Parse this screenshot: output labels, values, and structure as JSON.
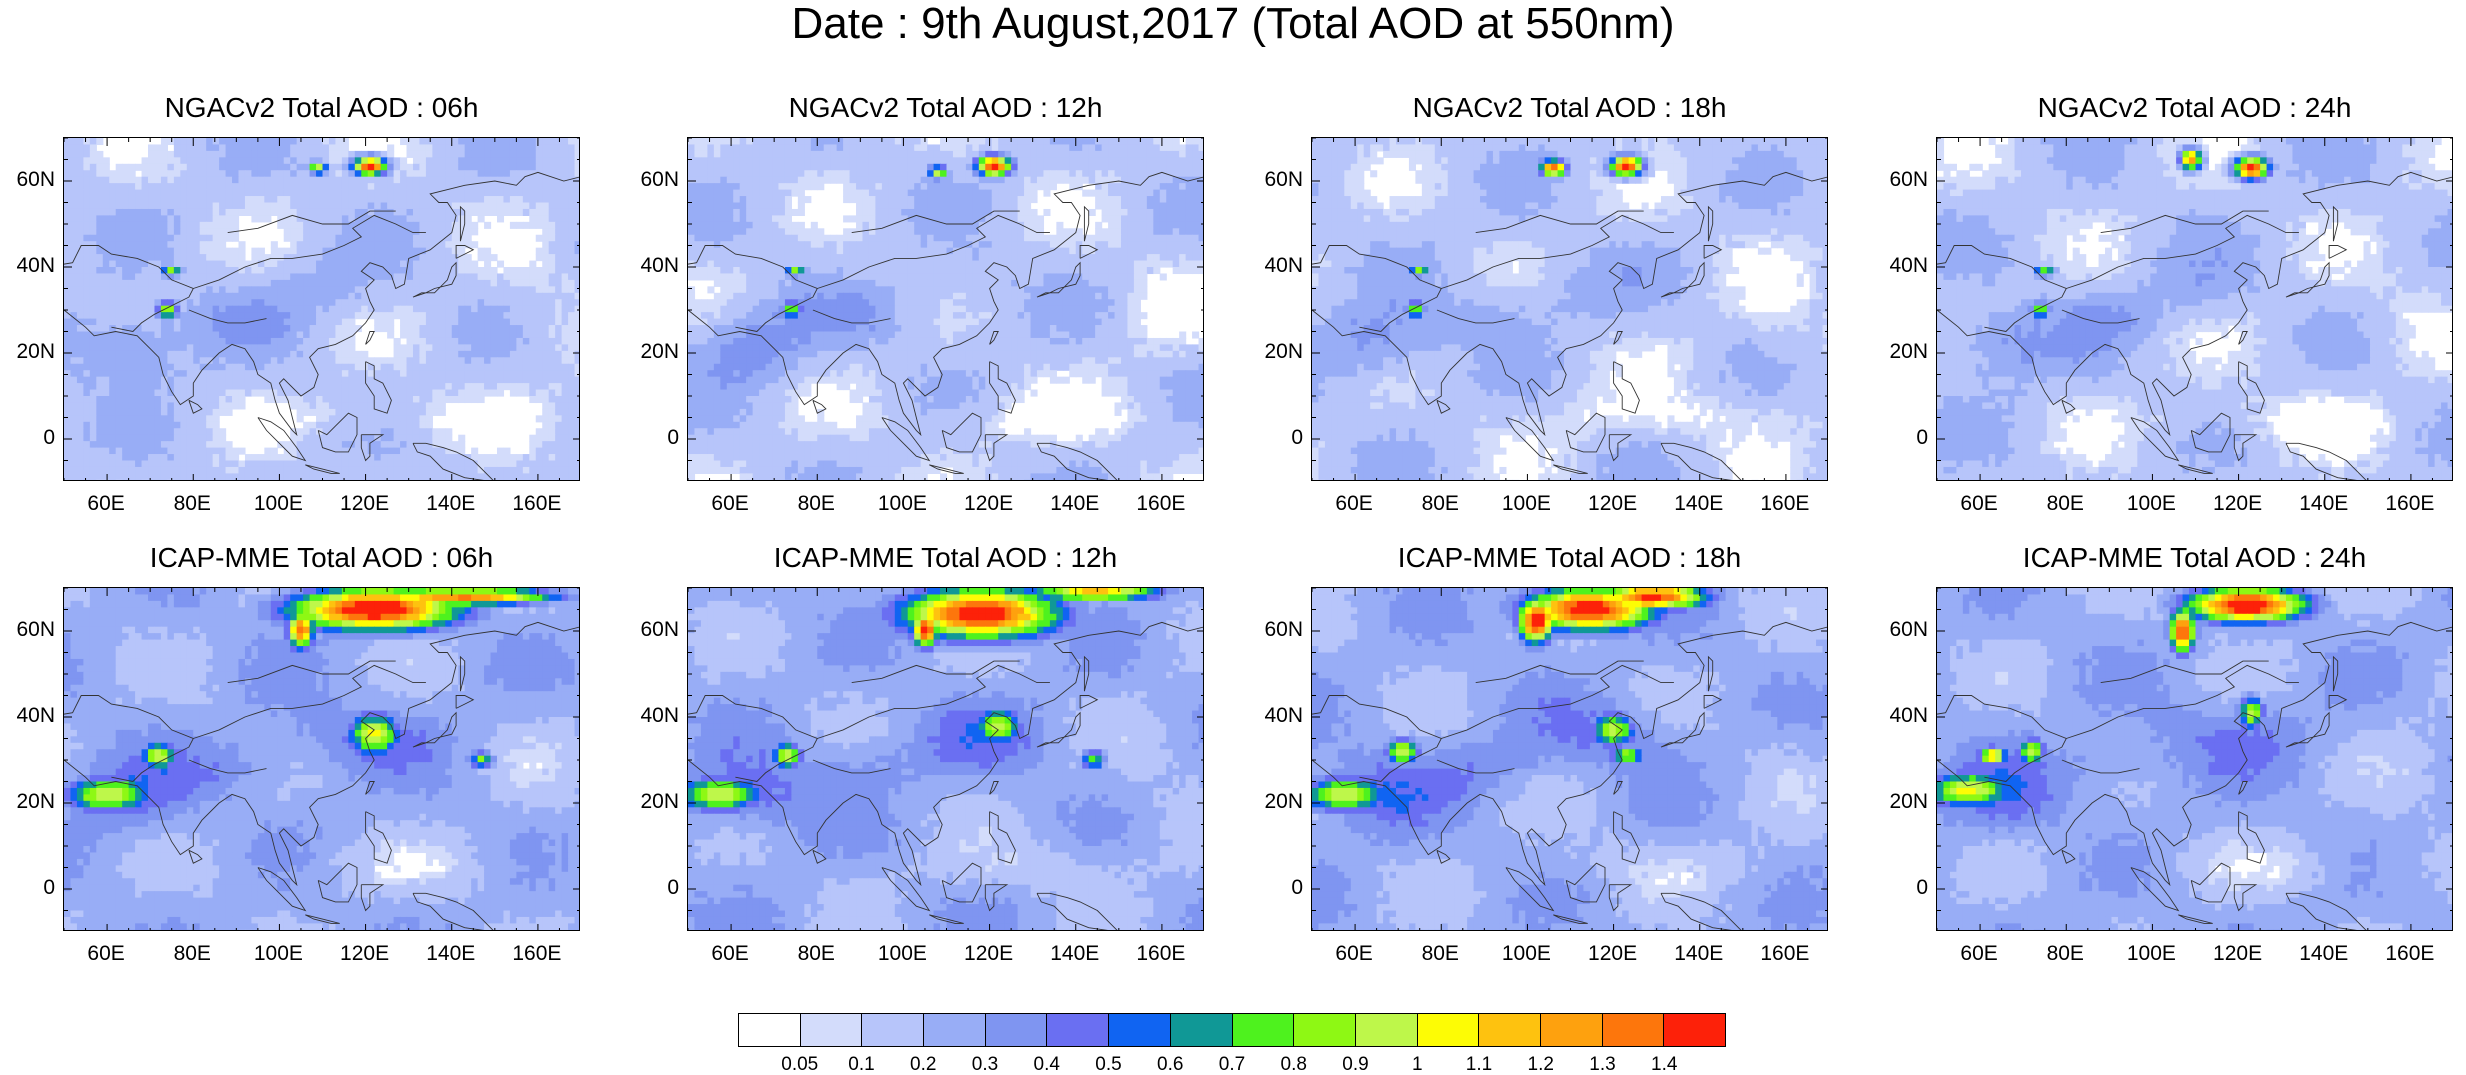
{
  "title": "Date : 9th August,2017 (Total AOD at 550nm)",
  "panels": [
    {
      "id": "ngac-06",
      "title": "NGACv2 Total AOD : 06h",
      "model": "NGACv2",
      "hour": "06h"
    },
    {
      "id": "ngac-12",
      "title": "NGACv2 Total AOD : 12h",
      "model": "NGACv2",
      "hour": "12h"
    },
    {
      "id": "ngac-18",
      "title": "NGACv2 Total AOD : 18h",
      "model": "NGACv2",
      "hour": "18h"
    },
    {
      "id": "ngac-24",
      "title": "NGACv2 Total AOD : 24h",
      "model": "NGACv2",
      "hour": "24h"
    },
    {
      "id": "icap-06",
      "title": "ICAP-MME Total AOD : 06h",
      "model": "ICAP-MME",
      "hour": "06h"
    },
    {
      "id": "icap-12",
      "title": "ICAP-MME Total AOD : 12h",
      "model": "ICAP-MME",
      "hour": "12h"
    },
    {
      "id": "icap-18",
      "title": "ICAP-MME Total AOD : 18h",
      "model": "ICAP-MME",
      "hour": "18h"
    },
    {
      "id": "icap-24",
      "title": "ICAP-MME Total AOD : 24h",
      "model": "ICAP-MME",
      "hour": "24h"
    }
  ],
  "map_extent": {
    "lon": [
      50,
      170
    ],
    "lat": [
      -10,
      70
    ]
  },
  "lat_ticks": [
    {
      "value": 60,
      "label": "60N"
    },
    {
      "value": 40,
      "label": "40N"
    },
    {
      "value": 20,
      "label": "20N"
    },
    {
      "value": 0,
      "label": "0"
    }
  ],
  "lon_ticks": [
    {
      "value": 60,
      "label": "60E"
    },
    {
      "value": 80,
      "label": "80E"
    },
    {
      "value": 100,
      "label": "100E"
    },
    {
      "value": 120,
      "label": "120E"
    },
    {
      "value": 140,
      "label": "140E"
    },
    {
      "value": 160,
      "label": "160E"
    }
  ],
  "colorbar": {
    "colors": [
      "#ffffff",
      "#d3dcfb",
      "#b7c5fa",
      "#98adf6",
      "#7f95f1",
      "#6a6ff2",
      "#1064f2",
      "#109896",
      "#4ef21e",
      "#8ef814",
      "#bef74a",
      "#fdfc05",
      "#fec20f",
      "#fea10e",
      "#fd760c",
      "#fd2109"
    ],
    "labels": [
      "0.05",
      "0.1",
      "0.2",
      "0.3",
      "0.4",
      "0.5",
      "0.6",
      "0.7",
      "0.8",
      "0.9",
      "1",
      "1.1",
      "1.2",
      "1.3",
      "1.4"
    ]
  },
  "hotspots": {
    "ngac-06": [
      [
        121,
        63.5,
        4,
        2.2,
        1.5
      ],
      [
        109,
        63,
        2.2,
        1.5,
        0.95
      ],
      [
        74,
        30,
        2.5,
        2.2,
        0.85
      ],
      [
        75,
        39,
        2.5,
        1.3,
        0.8
      ]
    ],
    "ngac-12": [
      [
        121,
        63.5,
        4,
        2.4,
        1.5
      ],
      [
        108,
        62,
        2.2,
        1.6,
        0.95
      ],
      [
        74,
        30,
        2.3,
        2,
        0.8
      ],
      [
        75,
        39,
        2.5,
        1.2,
        0.8
      ]
    ],
    "ngac-18": [
      [
        123,
        63.5,
        4,
        2.3,
        1.5
      ],
      [
        106,
        63,
        3,
        2,
        1.35
      ],
      [
        74,
        30,
        2.3,
        2,
        0.8
      ],
      [
        75,
        39,
        2.5,
        1.2,
        0.8
      ]
    ],
    "ngac-24": [
      [
        123,
        63,
        4,
        2.6,
        1.5
      ],
      [
        109,
        65,
        2.5,
        2.5,
        1.3
      ],
      [
        74,
        30,
        2.3,
        2,
        0.8
      ],
      [
        75,
        39,
        2.5,
        1.2,
        0.8
      ]
    ],
    "icap-06": [
      [
        122,
        65,
        20,
        5,
        1.5
      ],
      [
        105,
        60,
        3,
        4,
        1.3
      ],
      [
        145,
        68,
        20,
        2,
        1.2
      ],
      [
        60,
        22,
        10,
        4,
        0.9
      ],
      [
        72,
        31,
        4,
        3,
        0.9
      ],
      [
        122,
        36,
        6,
        5,
        0.9
      ],
      [
        147,
        30,
        3,
        2,
        0.75
      ]
    ],
    "icap-12": [
      [
        118,
        64,
        18,
        6,
        1.5
      ],
      [
        105,
        60,
        3,
        4,
        1.3
      ],
      [
        145,
        69,
        15,
        2,
        1.1
      ],
      [
        57,
        22,
        10,
        4,
        0.9
      ],
      [
        73,
        31,
        3.5,
        3,
        0.9
      ],
      [
        122,
        38,
        5,
        4,
        0.85
      ],
      [
        144,
        30,
        3,
        2.5,
        0.7
      ]
    ],
    "icap-18": [
      [
        114,
        65,
        15,
        5,
        1.5
      ],
      [
        102,
        62,
        4,
        5,
        1.4
      ],
      [
        130,
        68,
        12,
        3,
        1.3
      ],
      [
        57,
        22,
        10,
        4,
        0.9
      ],
      [
        71,
        32,
        4,
        3,
        0.9
      ],
      [
        120,
        37,
        5,
        4,
        0.85
      ],
      [
        123,
        31,
        4,
        2,
        0.8
      ]
    ],
    "icap-24": [
      [
        122,
        66,
        14,
        4,
        1.5
      ],
      [
        107,
        60,
        3,
        5,
        1.4
      ],
      [
        57,
        23,
        10,
        4,
        0.9
      ],
      [
        72,
        32,
        3,
        3,
        0.9
      ],
      [
        123,
        41,
        3,
        4,
        0.85
      ],
      [
        63,
        31,
        3,
        2,
        1.1
      ]
    ]
  }
}
